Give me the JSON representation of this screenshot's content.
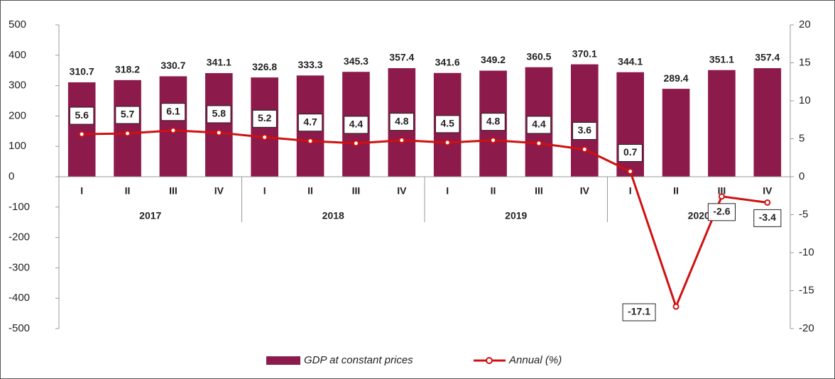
{
  "chart_data": {
    "type": "bar-line",
    "categories": [
      "I",
      "II",
      "III",
      "IV",
      "I",
      "II",
      "III",
      "IV",
      "I",
      "II",
      "III",
      "IV",
      "I",
      "II",
      "III",
      "IV"
    ],
    "groups": [
      "2017",
      "2018",
      "2019",
      "2020"
    ],
    "series": [
      {
        "name": "GDP at constant prices",
        "type": "bar",
        "color": "#8c1a4b",
        "values": [
          310.7,
          318.2,
          330.7,
          341.1,
          326.8,
          333.3,
          345.3,
          357.4,
          341.6,
          349.2,
          360.5,
          370.1,
          344.1,
          289.4,
          351.1,
          357.4
        ]
      },
      {
        "name": "Annual (%)",
        "type": "line",
        "axis": "y2",
        "color": "#d01010",
        "values": [
          5.6,
          5.7,
          6.1,
          5.8,
          5.2,
          4.7,
          4.4,
          4.8,
          4.5,
          4.8,
          4.4,
          3.6,
          0.7,
          -17.1,
          -2.6,
          -3.4
        ]
      }
    ],
    "ylim": [
      -500,
      500
    ],
    "yticks": [
      -500,
      -400,
      -300,
      -200,
      -100,
      0,
      100,
      200,
      300,
      400,
      500
    ],
    "y2lim": [
      -20,
      20
    ],
    "y2ticks": [
      -20,
      -15,
      -10,
      -5,
      0,
      5,
      10,
      15,
      20
    ],
    "legend": "bottom"
  }
}
